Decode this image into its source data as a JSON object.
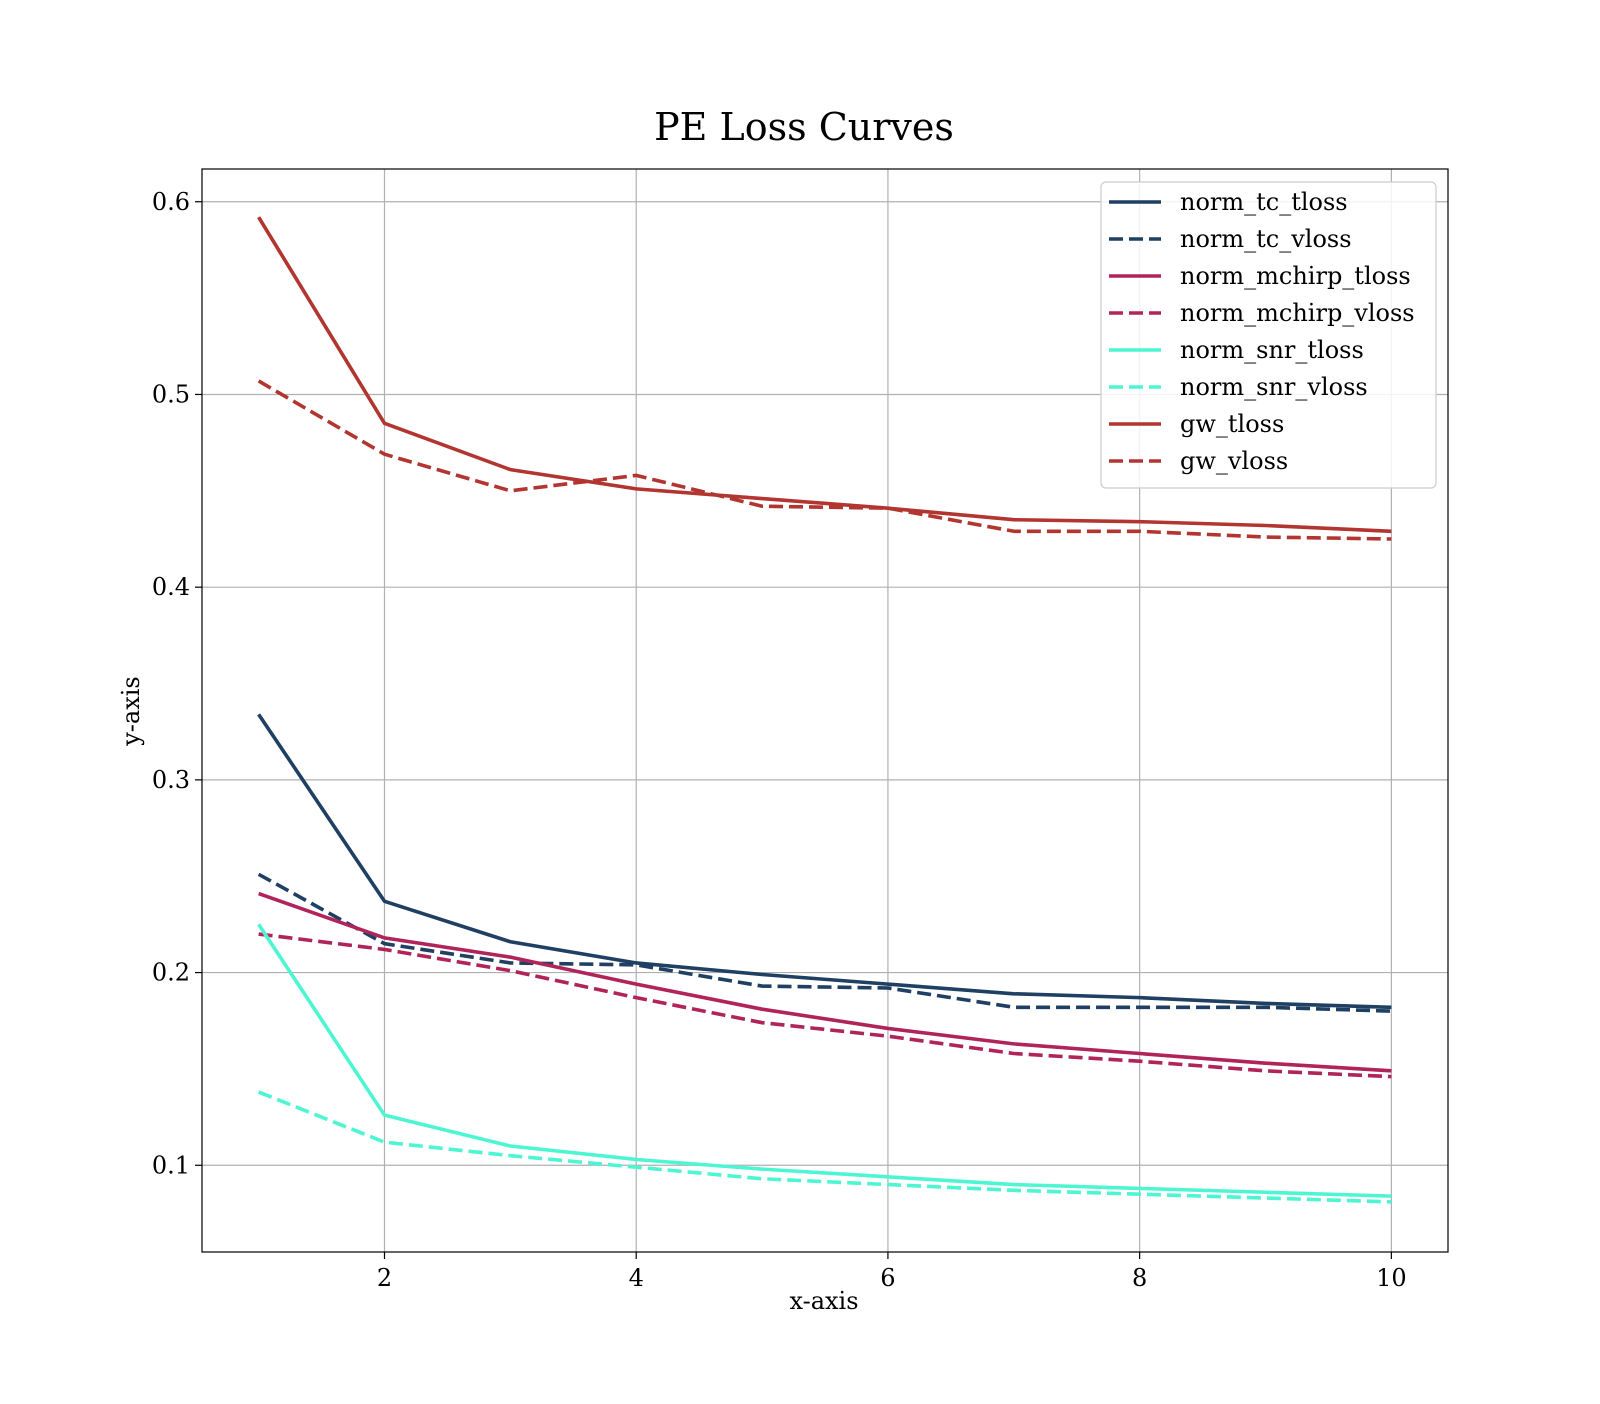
{
  "chart_data": {
    "type": "line",
    "title": "PE Loss Curves",
    "xlabel": "x-axis",
    "ylabel": "y-axis",
    "xlim": [
      0.55,
      10.45
    ],
    "ylim": [
      0.055,
      0.617
    ],
    "xticks": [
      2,
      4,
      6,
      8,
      10
    ],
    "yticks": [
      0.1,
      0.2,
      0.3,
      0.4,
      0.5,
      0.6
    ],
    "ytick_labels": [
      "0.1",
      "0.2",
      "0.3",
      "0.4",
      "0.5",
      "0.6"
    ],
    "grid": true,
    "legend_position": "top-right",
    "x": [
      1,
      2,
      3,
      4,
      5,
      6,
      7,
      8,
      9,
      10
    ],
    "series": [
      {
        "name": "norm_tc_tloss",
        "style": "solid",
        "color": "#1f3f63",
        "values": [
          0.334,
          0.237,
          0.216,
          0.205,
          0.199,
          0.194,
          0.189,
          0.187,
          0.184,
          0.182
        ]
      },
      {
        "name": "norm_tc_vloss",
        "style": "dashed",
        "color": "#1f3f63",
        "values": [
          0.251,
          0.215,
          0.205,
          0.204,
          0.193,
          0.192,
          0.182,
          0.182,
          0.182,
          0.18
        ]
      },
      {
        "name": "norm_mchirp_tloss",
        "style": "solid",
        "color": "#b0245a",
        "values": [
          0.241,
          0.218,
          0.208,
          0.194,
          0.181,
          0.171,
          0.163,
          0.158,
          0.153,
          0.149
        ]
      },
      {
        "name": "norm_mchirp_vloss",
        "style": "dashed",
        "color": "#b0245a",
        "values": [
          0.22,
          0.212,
          0.201,
          0.187,
          0.174,
          0.167,
          0.158,
          0.154,
          0.149,
          0.146
        ]
      },
      {
        "name": "norm_snr_tloss",
        "style": "solid",
        "color": "#4ef5d2",
        "values": [
          0.225,
          0.126,
          0.11,
          0.103,
          0.098,
          0.094,
          0.09,
          0.088,
          0.086,
          0.084
        ]
      },
      {
        "name": "norm_snr_vloss",
        "style": "dashed",
        "color": "#4ef5d2",
        "values": [
          0.138,
          0.112,
          0.105,
          0.099,
          0.093,
          0.09,
          0.087,
          0.085,
          0.083,
          0.081
        ]
      },
      {
        "name": "gw_tloss",
        "style": "solid",
        "color": "#b23530",
        "values": [
          0.592,
          0.485,
          0.461,
          0.451,
          0.446,
          0.441,
          0.435,
          0.434,
          0.432,
          0.429
        ]
      },
      {
        "name": "gw_vloss",
        "style": "dashed",
        "color": "#b23530",
        "values": [
          0.507,
          0.469,
          0.45,
          0.458,
          0.442,
          0.441,
          0.429,
          0.429,
          0.426,
          0.425
        ]
      }
    ]
  }
}
